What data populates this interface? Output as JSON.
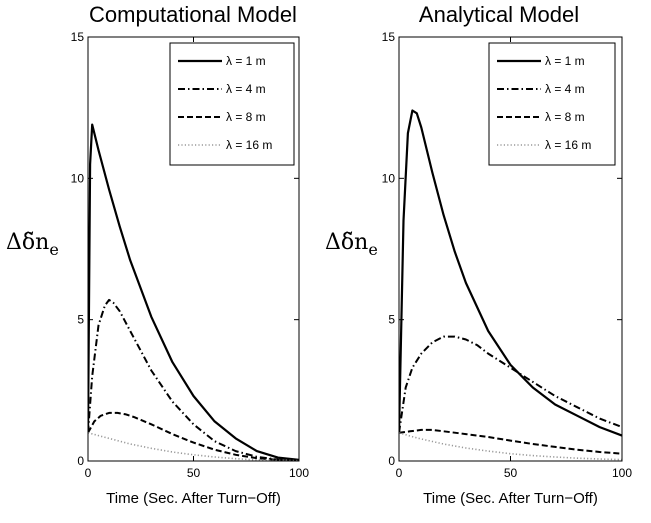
{
  "chart_data": [
    {
      "type": "line",
      "title": "Computational Model",
      "xlabel": "Time (Sec. After Turn−Off)",
      "ylabel": "Δδ̃n",
      "ylabel_subscript": "e",
      "xlim": [
        0,
        100
      ],
      "ylim": [
        0,
        15
      ],
      "xticks": [
        "0",
        "50",
        "100"
      ],
      "yticks": [
        "0",
        "5",
        "10",
        "15"
      ],
      "grid": false,
      "legend_position": "top-right",
      "series": [
        {
          "name": "λ = 1 m",
          "style": "solid",
          "color": "#000000",
          "x": [
            0,
            1,
            2,
            5,
            10,
            15,
            20,
            25,
            30,
            40,
            50,
            60,
            70,
            80,
            90,
            100
          ],
          "y": [
            1.0,
            10.5,
            11.9,
            11.0,
            9.6,
            8.3,
            7.1,
            6.1,
            5.1,
            3.5,
            2.3,
            1.4,
            0.8,
            0.35,
            0.12,
            0.04
          ]
        },
        {
          "name": "λ = 4 m",
          "style": "dashdot",
          "color": "#000000",
          "x": [
            0,
            2,
            5,
            8,
            10,
            12,
            15,
            20,
            25,
            30,
            40,
            50,
            60,
            70,
            80,
            90,
            100
          ],
          "y": [
            1.0,
            3.0,
            4.8,
            5.5,
            5.7,
            5.6,
            5.3,
            4.6,
            3.9,
            3.2,
            2.1,
            1.3,
            0.7,
            0.35,
            0.15,
            0.05,
            0.02
          ]
        },
        {
          "name": "λ = 8 m",
          "style": "dashed",
          "color": "#000000",
          "x": [
            0,
            3,
            6,
            10,
            14,
            18,
            22,
            30,
            40,
            50,
            60,
            70,
            80,
            90,
            100
          ],
          "y": [
            1.0,
            1.4,
            1.6,
            1.7,
            1.7,
            1.65,
            1.55,
            1.3,
            0.95,
            0.65,
            0.4,
            0.22,
            0.1,
            0.04,
            0.01
          ]
        },
        {
          "name": "λ = 16 m",
          "style": "dotted",
          "color": "#999999",
          "x": [
            0,
            5,
            10,
            20,
            30,
            40,
            50,
            60,
            70,
            80,
            90,
            100
          ],
          "y": [
            1.0,
            0.9,
            0.8,
            0.6,
            0.45,
            0.32,
            0.22,
            0.14,
            0.08,
            0.04,
            0.02,
            0.01
          ]
        }
      ]
    },
    {
      "type": "line",
      "title": "Analytical Model",
      "xlabel": "Time (Sec. After Turn−Off)",
      "ylabel": "Δδ̃n",
      "ylabel_subscript": "e",
      "xlim": [
        0,
        100
      ],
      "ylim": [
        0,
        15
      ],
      "xticks": [
        "0",
        "50",
        "100"
      ],
      "yticks": [
        "0",
        "5",
        "10",
        "15"
      ],
      "grid": false,
      "legend_position": "top-right",
      "series": [
        {
          "name": "λ = 1 m",
          "style": "solid",
          "color": "#000000",
          "x": [
            0,
            2,
            4,
            6,
            8,
            10,
            15,
            20,
            25,
            30,
            40,
            50,
            60,
            70,
            80,
            90,
            100
          ],
          "y": [
            1.0,
            8.5,
            11.6,
            12.4,
            12.3,
            11.8,
            10.2,
            8.7,
            7.4,
            6.3,
            4.6,
            3.4,
            2.6,
            2.0,
            1.6,
            1.2,
            0.9
          ]
        },
        {
          "name": "λ = 4 m",
          "style": "dashdot",
          "color": "#000000",
          "x": [
            0,
            3,
            6,
            10,
            15,
            20,
            25,
            30,
            35,
            40,
            50,
            60,
            70,
            80,
            90,
            100
          ],
          "y": [
            1.0,
            2.6,
            3.3,
            3.8,
            4.2,
            4.4,
            4.4,
            4.3,
            4.1,
            3.8,
            3.3,
            2.8,
            2.3,
            1.9,
            1.5,
            1.2
          ]
        },
        {
          "name": "λ = 8 m",
          "style": "dashed",
          "color": "#000000",
          "x": [
            0,
            5,
            10,
            15,
            20,
            30,
            40,
            50,
            60,
            70,
            80,
            90,
            100
          ],
          "y": [
            1.0,
            1.05,
            1.1,
            1.1,
            1.05,
            0.95,
            0.85,
            0.72,
            0.6,
            0.5,
            0.4,
            0.32,
            0.26
          ]
        },
        {
          "name": "λ = 16 m",
          "style": "dotted",
          "color": "#999999",
          "x": [
            0,
            5,
            10,
            20,
            30,
            40,
            50,
            60,
            70,
            80,
            90,
            100
          ],
          "y": [
            1.0,
            0.88,
            0.78,
            0.6,
            0.46,
            0.35,
            0.26,
            0.19,
            0.14,
            0.1,
            0.07,
            0.05
          ]
        }
      ]
    }
  ]
}
